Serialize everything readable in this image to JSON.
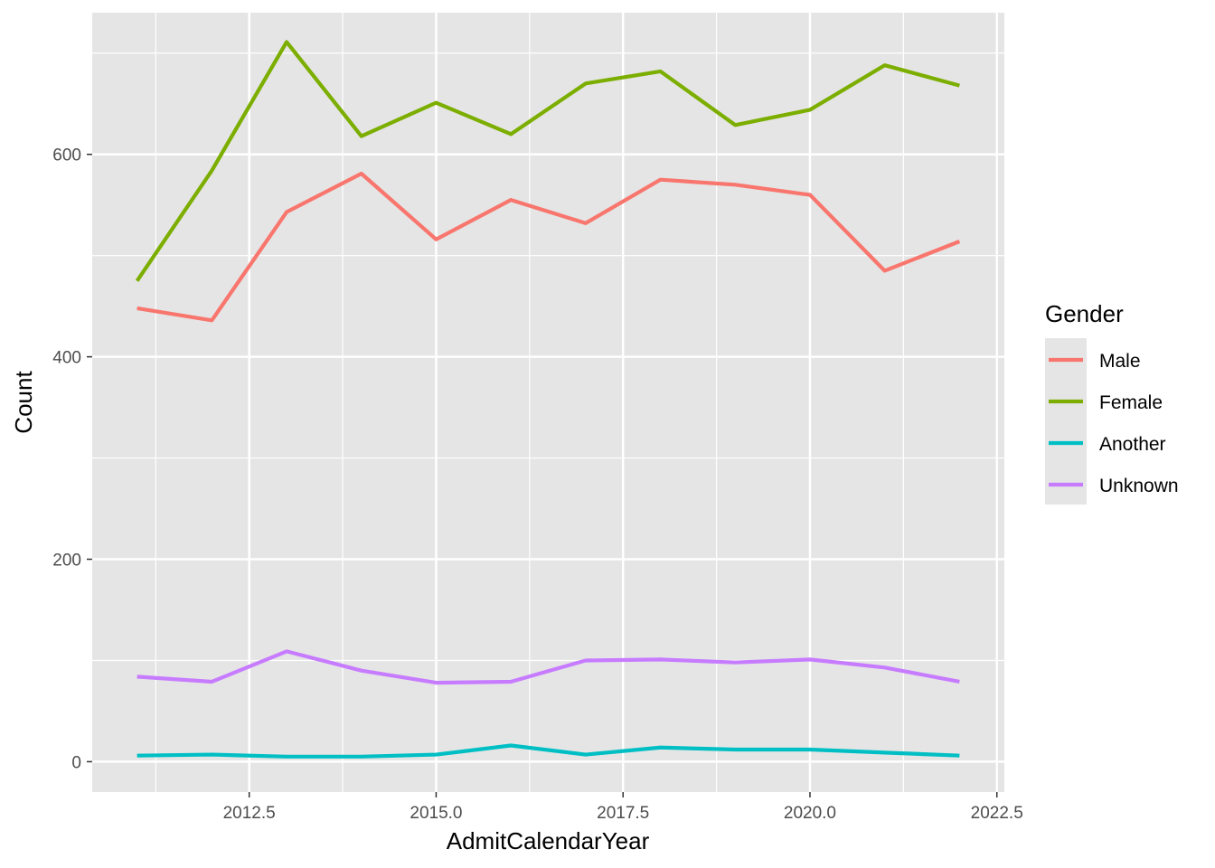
{
  "chart_data": {
    "type": "line",
    "xlabel": "AdmitCalendarYear",
    "ylabel": "Count",
    "x": [
      2011,
      2012,
      2013,
      2014,
      2015,
      2016,
      2017,
      2018,
      2019,
      2020,
      2021,
      2022
    ],
    "xlim": [
      2010.4,
      2022.6
    ],
    "ylim": [
      -30,
      740
    ],
    "x_ticks": [
      "2012.5",
      "2015.0",
      "2017.5",
      "2020.0",
      "2022.5"
    ],
    "y_ticks": [
      "0",
      "200",
      "400",
      "600"
    ],
    "grid": true,
    "legend": {
      "title": "Gender",
      "position": "right"
    },
    "series": [
      {
        "name": "Male",
        "color": "#F8766D",
        "values": [
          448,
          436,
          543,
          581,
          516,
          555,
          532,
          575,
          570,
          560,
          485,
          514
        ]
      },
      {
        "name": "Female",
        "color": "#7CAE00",
        "values": [
          475,
          584,
          711,
          618,
          651,
          620,
          670,
          682,
          629,
          644,
          688,
          668
        ]
      },
      {
        "name": "Another",
        "color": "#00BFC4",
        "values": [
          6,
          7,
          5,
          5,
          7,
          16,
          7,
          14,
          12,
          12,
          9,
          6
        ]
      },
      {
        "name": "Unknown",
        "color": "#C77CFF",
        "values": [
          84,
          79,
          109,
          90,
          78,
          79,
          100,
          101,
          98,
          101,
          93,
          79
        ]
      }
    ]
  }
}
